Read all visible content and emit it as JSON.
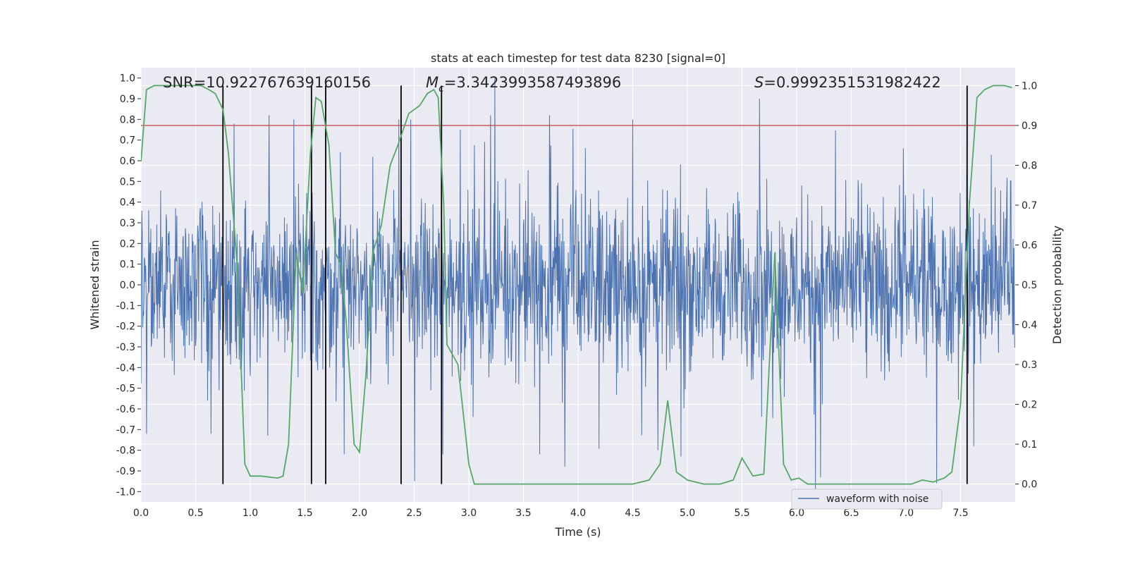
{
  "chart_data": {
    "type": "line",
    "title": "stats at each timestep for test data 8230 [signal=0]",
    "xlabel": "Time (s)",
    "ylabel": "Whitened strain",
    "y2label": "Detection probability",
    "xlim": [
      0.0,
      8.0
    ],
    "ylim": [
      -1.05,
      1.05
    ],
    "y2lim": [
      -0.045,
      1.045
    ],
    "x_ticks": [
      "0.0",
      "0.5",
      "1.0",
      "1.5",
      "2.0",
      "2.5",
      "3.0",
      "3.5",
      "4.0",
      "4.5",
      "5.0",
      "5.5",
      "6.0",
      "6.5",
      "7.0",
      "7.5"
    ],
    "y_ticks": [
      "-1.0",
      "-0.9",
      "-0.8",
      "-0.7",
      "-0.6",
      "-0.5",
      "-0.4",
      "-0.3",
      "-0.2",
      "-0.1",
      "0.0",
      "0.1",
      "0.2",
      "0.3",
      "0.4",
      "0.5",
      "0.6",
      "0.7",
      "0.8",
      "0.9",
      "1.0"
    ],
    "y2_ticks": [
      "0.0",
      "0.1",
      "0.2",
      "0.3",
      "0.4",
      "0.5",
      "0.6",
      "0.7",
      "0.8",
      "0.9",
      "1.0"
    ],
    "legend": {
      "label": "waveform with noise",
      "position": "lower-center-right",
      "color": "#4c72b0"
    },
    "annotations": {
      "snr": "SNR=10.922767639160156",
      "mc_symbol": "M",
      "mc_sub": "c",
      "mc_value": "=3.3423993587493896",
      "s_symbol": "S",
      "s_value": "=0.9992351531982422"
    },
    "threshold": {
      "y2": 0.9,
      "color": "#c44e52"
    },
    "vertical_markers": [
      0.75,
      1.56,
      1.69,
      2.38,
      2.75,
      7.56
    ],
    "waveform_series": {
      "name": "waveform with noise",
      "color": "#4c72b0",
      "x_range": [
        0.0,
        7.996
      ],
      "samples": 2048,
      "dense_band": [
        -0.38,
        0.42
      ],
      "peaks": [
        {
          "x": 3.24,
          "y": 1.0
        },
        {
          "x": 5.66,
          "y": 0.9
        },
        {
          "x": 3.74,
          "y": 0.82
        },
        {
          "x": 1.17,
          "y": 0.82
        },
        {
          "x": 0.85,
          "y": 0.78
        },
        {
          "x": 1.4,
          "y": 0.8
        },
        {
          "x": 2.36,
          "y": 0.8
        },
        {
          "x": 2.47,
          "y": 0.8
        },
        {
          "x": 3.2,
          "y": 0.82
        },
        {
          "x": 4.5,
          "y": 0.8
        },
        {
          "x": 7.56,
          "y": 0.82
        },
        {
          "x": 2.92,
          "y": 0.75
        },
        {
          "x": 6.17,
          "y": -1.0
        },
        {
          "x": 3.88,
          "y": -0.88
        },
        {
          "x": 4.94,
          "y": -0.83
        },
        {
          "x": 2.76,
          "y": -0.82
        },
        {
          "x": 1.86,
          "y": -0.82
        },
        {
          "x": 0.64,
          "y": -0.72
        },
        {
          "x": 0.05,
          "y": -0.72
        },
        {
          "x": 7.62,
          "y": -0.78
        },
        {
          "x": 1.16,
          "y": -0.73
        },
        {
          "x": 4.73,
          "y": -0.8
        },
        {
          "x": 3.65,
          "y": -0.82
        }
      ]
    },
    "probability_series": {
      "name": "Detection probability",
      "color": "#55a868",
      "x": [
        0.0,
        0.05,
        0.12,
        0.25,
        0.4,
        0.55,
        0.62,
        0.68,
        0.75,
        0.8,
        0.88,
        0.95,
        1.0,
        1.1,
        1.25,
        1.3,
        1.35,
        1.42,
        1.48,
        1.55,
        1.6,
        1.65,
        1.72,
        1.78,
        1.83,
        1.88,
        1.95,
        2.0,
        2.06,
        2.12,
        2.2,
        2.28,
        2.35,
        2.45,
        2.55,
        2.62,
        2.68,
        2.72,
        2.77,
        2.8,
        2.9,
        3.0,
        3.05,
        3.15,
        3.3,
        3.5,
        3.7,
        3.9,
        4.1,
        4.3,
        4.5,
        4.65,
        4.75,
        4.82,
        4.9,
        5.0,
        5.15,
        5.3,
        5.42,
        5.5,
        5.6,
        5.7,
        5.8,
        5.88,
        5.95,
        6.02,
        6.1,
        6.2,
        6.3,
        6.5,
        6.7,
        6.9,
        7.05,
        7.15,
        7.25,
        7.3,
        7.35,
        7.42,
        7.5,
        7.58,
        7.65,
        7.72,
        7.8,
        7.9,
        7.97
      ],
      "y": [
        0.81,
        0.99,
        1.0,
        1.0,
        1.0,
        1.0,
        0.99,
        0.98,
        0.94,
        0.83,
        0.55,
        0.05,
        0.02,
        0.02,
        0.015,
        0.02,
        0.1,
        0.58,
        0.48,
        0.83,
        0.97,
        0.96,
        0.85,
        0.58,
        0.55,
        0.4,
        0.1,
        0.08,
        0.28,
        0.58,
        0.65,
        0.8,
        0.85,
        0.93,
        0.95,
        0.98,
        0.99,
        0.97,
        0.7,
        0.35,
        0.3,
        0.05,
        0.0,
        0.0,
        0.0,
        0.0,
        0.0,
        0.0,
        0.0,
        0.0,
        0.0,
        0.01,
        0.05,
        0.21,
        0.03,
        0.01,
        0.0,
        0.0,
        0.01,
        0.065,
        0.02,
        0.025,
        0.58,
        0.05,
        0.01,
        0.015,
        0.0,
        0.0,
        0.0,
        0.0,
        0.0,
        0.0,
        0.0,
        0.01,
        0.005,
        0.01,
        0.015,
        0.03,
        0.2,
        0.7,
        0.97,
        0.99,
        1.0,
        1.0,
        0.995
      ]
    }
  }
}
